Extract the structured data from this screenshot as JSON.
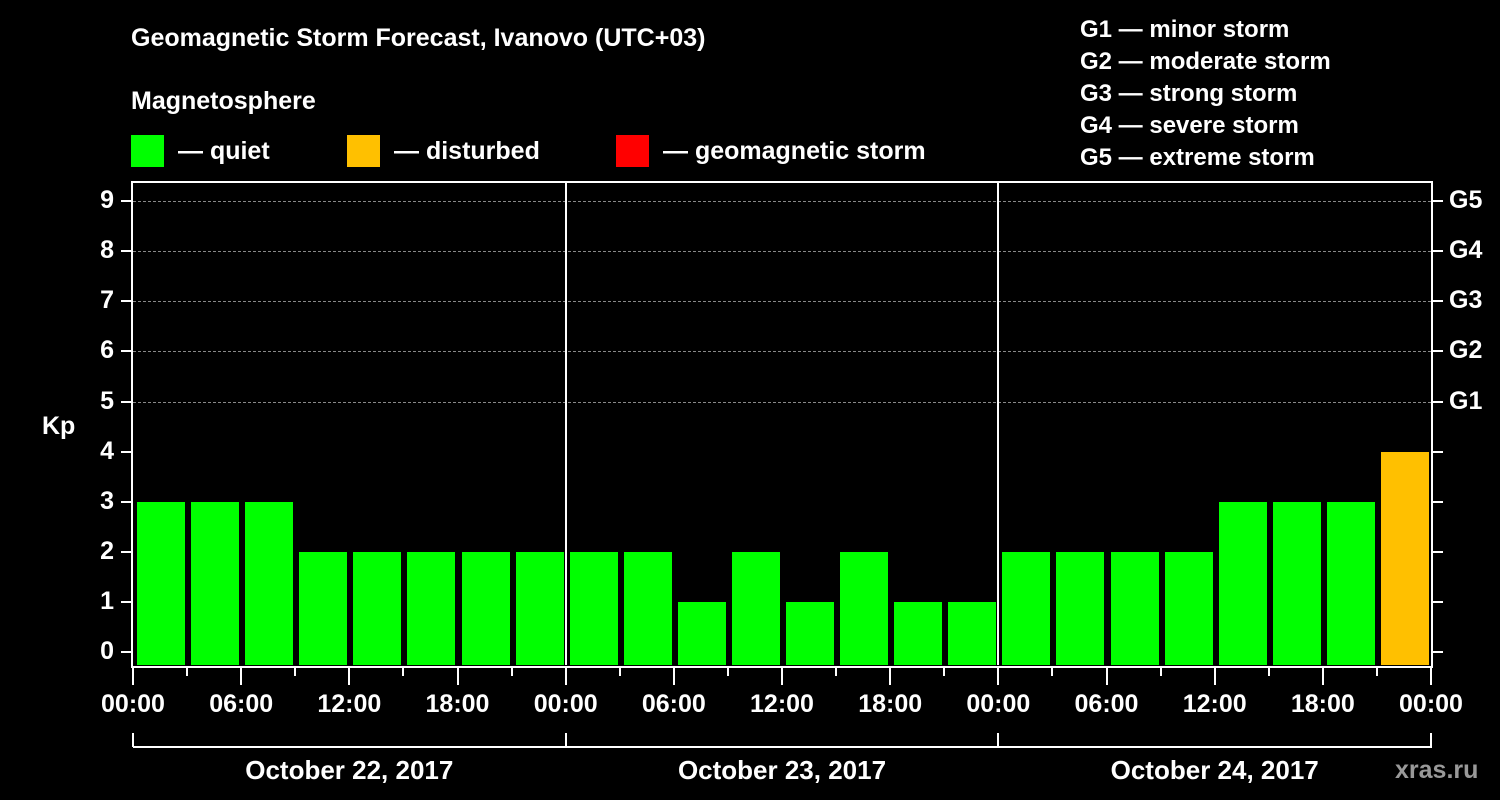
{
  "header": {
    "title": "Geomagnetic Storm Forecast, Ivanovo (UTC+03)",
    "subtitle": "Magnetosphere"
  },
  "legend": [
    {
      "label": "— quiet",
      "color": "#00ff00"
    },
    {
      "label": "— disturbed",
      "color": "#ffc000"
    },
    {
      "label": "— geomagnetic storm",
      "color": "#ff0000"
    }
  ],
  "storm_scale": [
    "G1 — minor storm",
    "G2 — moderate storm",
    "G3 — strong storm",
    "G4 — severe storm",
    "G5 — extreme storm"
  ],
  "axes": {
    "ylabel": "Kp",
    "yticks": [
      "0",
      "1",
      "2",
      "3",
      "4",
      "5",
      "6",
      "7",
      "8",
      "9"
    ],
    "right_ticks": [
      {
        "kp": 5,
        "label": "G1"
      },
      {
        "kp": 6,
        "label": "G2"
      },
      {
        "kp": 7,
        "label": "G3"
      },
      {
        "kp": 8,
        "label": "G4"
      },
      {
        "kp": 9,
        "label": "G5"
      }
    ],
    "xticks": [
      "00:00",
      "06:00",
      "12:00",
      "18:00",
      "00:00",
      "06:00",
      "12:00",
      "18:00",
      "00:00",
      "06:00",
      "12:00",
      "18:00",
      "00:00"
    ],
    "days": [
      "October 22, 2017",
      "October 23, 2017",
      "October 24, 2017"
    ]
  },
  "credit": "xras.ru",
  "chart_data": {
    "type": "bar",
    "title": "Geomagnetic Storm Forecast, Ivanovo (UTC+03)",
    "xlabel": "",
    "ylabel": "Kp",
    "ylim": [
      0,
      9
    ],
    "grid": "dashed horizontal at Kp 5–9",
    "categories": [
      "Oct 22 00:00",
      "Oct 22 03:00",
      "Oct 22 06:00",
      "Oct 22 09:00",
      "Oct 22 12:00",
      "Oct 22 15:00",
      "Oct 22 18:00",
      "Oct 22 21:00",
      "Oct 23 00:00",
      "Oct 23 03:00",
      "Oct 23 06:00",
      "Oct 23 09:00",
      "Oct 23 12:00",
      "Oct 23 15:00",
      "Oct 23 18:00",
      "Oct 23 21:00",
      "Oct 24 00:00",
      "Oct 24 03:00",
      "Oct 24 06:00",
      "Oct 24 09:00",
      "Oct 24 12:00",
      "Oct 24 15:00",
      "Oct 24 18:00",
      "Oct 24 21:00"
    ],
    "values": [
      3,
      3,
      3,
      2,
      2,
      2,
      2,
      2,
      2,
      2,
      1,
      2,
      1,
      2,
      1,
      1,
      2,
      2,
      2,
      2,
      3,
      3,
      3,
      4
    ],
    "colors": [
      "quiet",
      "quiet",
      "quiet",
      "quiet",
      "quiet",
      "quiet",
      "quiet",
      "quiet",
      "quiet",
      "quiet",
      "quiet",
      "quiet",
      "quiet",
      "quiet",
      "quiet",
      "quiet",
      "quiet",
      "quiet",
      "quiet",
      "quiet",
      "quiet",
      "quiet",
      "quiet",
      "disturbed"
    ],
    "legend": [
      "quiet",
      "disturbed",
      "geomagnetic storm"
    ],
    "right_axis": {
      "5": "G1",
      "6": "G2",
      "7": "G3",
      "8": "G4",
      "9": "G5"
    }
  }
}
